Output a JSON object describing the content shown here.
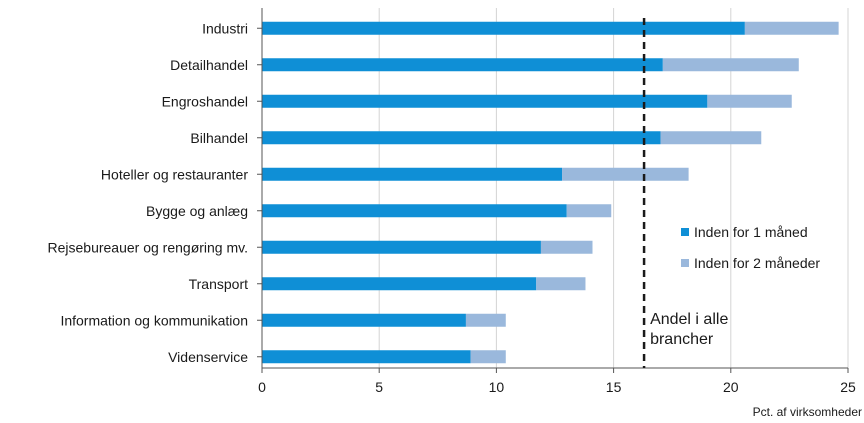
{
  "chart_data": {
    "type": "bar",
    "orientation": "horizontal",
    "stacked": true,
    "categories": [
      "Industri",
      "Detailhandel",
      "Engroshandel",
      "Bilhandel",
      "Hoteller og restauranter",
      "Bygge og anlæg",
      "Rejsebureauer og rengøring mv.",
      "Transport",
      "Information og kommunikation",
      "Videnservice"
    ],
    "series": [
      {
        "name": "Inden for 1 måned",
        "color": "#0f8fd6",
        "values": [
          20.6,
          17.1,
          19.0,
          17.0,
          12.8,
          13.0,
          11.9,
          11.7,
          8.7,
          8.9
        ]
      },
      {
        "name": "Inden for 2 måneder",
        "color": "#9ab8dc",
        "values": [
          4.0,
          5.8,
          3.6,
          4.3,
          5.4,
          1.9,
          2.2,
          2.1,
          1.7,
          1.5
        ]
      }
    ],
    "xlim": [
      0,
      25
    ],
    "xticks": [
      "0",
      "5",
      "10",
      "15",
      "20",
      "25"
    ],
    "xlabel": "Pct. af virksomheder",
    "grid": "vertical",
    "legend": "right",
    "reference_line": {
      "value": 16.3,
      "label_line1": "Andel i alle",
      "label_line2": "brancher"
    }
  }
}
